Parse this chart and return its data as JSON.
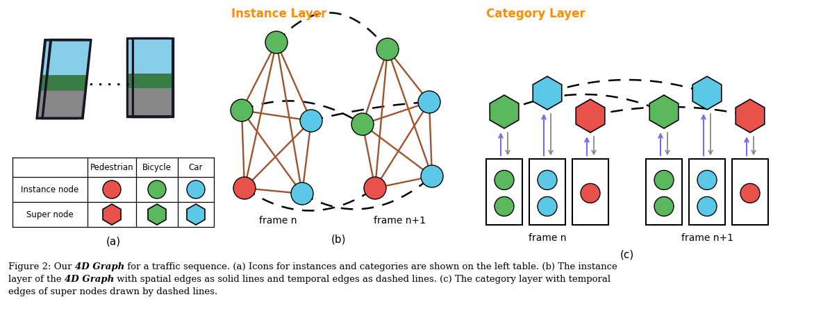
{
  "title_b": "Instance Layer",
  "title_c": "Category Layer",
  "label_a": "(a)",
  "label_b": "(b)",
  "label_c": "(c)",
  "frame_n": "frame n",
  "frame_n1": "frame n+1",
  "colors": {
    "red": "#E8524A",
    "green": "#5CB85C",
    "blue": "#5BC8E8",
    "brown": "#A0522D",
    "orange_title": "#FF8C00",
    "purple": "#7B68EE",
    "gray": "#888888",
    "black": "#000000",
    "white": "#FFFFFF"
  },
  "bg_color": "#FFFFFF"
}
